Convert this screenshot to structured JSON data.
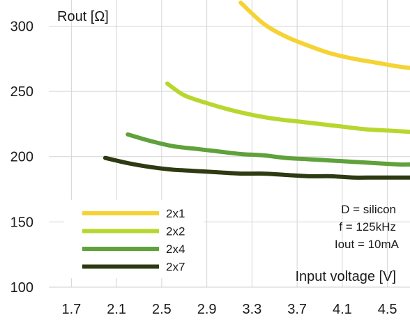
{
  "chart_data": {
    "type": "line",
    "title": "",
    "xlabel": "Input voltage [V]",
    "ylabel": "Rout [Ω]",
    "xlim": [
      1.5,
      4.7
    ],
    "ylim": [
      100,
      320
    ],
    "xticks": [
      1.7,
      2.1,
      2.5,
      2.9,
      3.3,
      3.7,
      4.1,
      4.5
    ],
    "xtick_labels": [
      "1.7",
      "2.1",
      "2.5",
      "2.9",
      "3.3",
      "3.7",
      "4.1",
      "4.5"
    ],
    "yticks": [
      100,
      150,
      200,
      250,
      300
    ],
    "ytick_labels": [
      "100",
      "150",
      "200",
      "250",
      "300"
    ],
    "grid": true,
    "legend_position": "bottom-left",
    "annotations": [
      "D = silicon",
      "f = 125kHz",
      "Iout = 10mA"
    ],
    "series": [
      {
        "name": "2x1",
        "color": "#f5d335",
        "x": [
          3.2,
          3.4,
          3.6,
          3.8,
          4.0,
          4.2,
          4.4,
          4.6,
          4.7
        ],
        "y": [
          318,
          302,
          292,
          285,
          279,
          275,
          272,
          269,
          268
        ]
      },
      {
        "name": "2x2",
        "color": "#b7d72e",
        "x": [
          2.55,
          2.7,
          2.9,
          3.1,
          3.3,
          3.5,
          3.7,
          3.9,
          4.1,
          4.3,
          4.5,
          4.7
        ],
        "y": [
          256,
          247,
          241,
          236,
          232,
          229,
          227,
          225,
          223,
          221,
          220,
          219
        ]
      },
      {
        "name": "2x4",
        "color": "#5fa13a",
        "x": [
          2.2,
          2.4,
          2.6,
          2.8,
          3.0,
          3.2,
          3.4,
          3.6,
          3.8,
          4.0,
          4.2,
          4.4,
          4.6,
          4.7
        ],
        "y": [
          217,
          212,
          208,
          206,
          204,
          202,
          201,
          199,
          198,
          197,
          196,
          195,
          194,
          194
        ]
      },
      {
        "name": "2x7",
        "color": "#2d3a12",
        "x": [
          2.0,
          2.2,
          2.4,
          2.6,
          2.8,
          3.0,
          3.2,
          3.4,
          3.6,
          3.8,
          4.0,
          4.2,
          4.4,
          4.7
        ],
        "y": [
          199,
          195,
          192,
          190,
          189,
          188,
          187,
          187,
          186,
          185,
          185,
          184,
          184,
          184
        ]
      }
    ]
  }
}
